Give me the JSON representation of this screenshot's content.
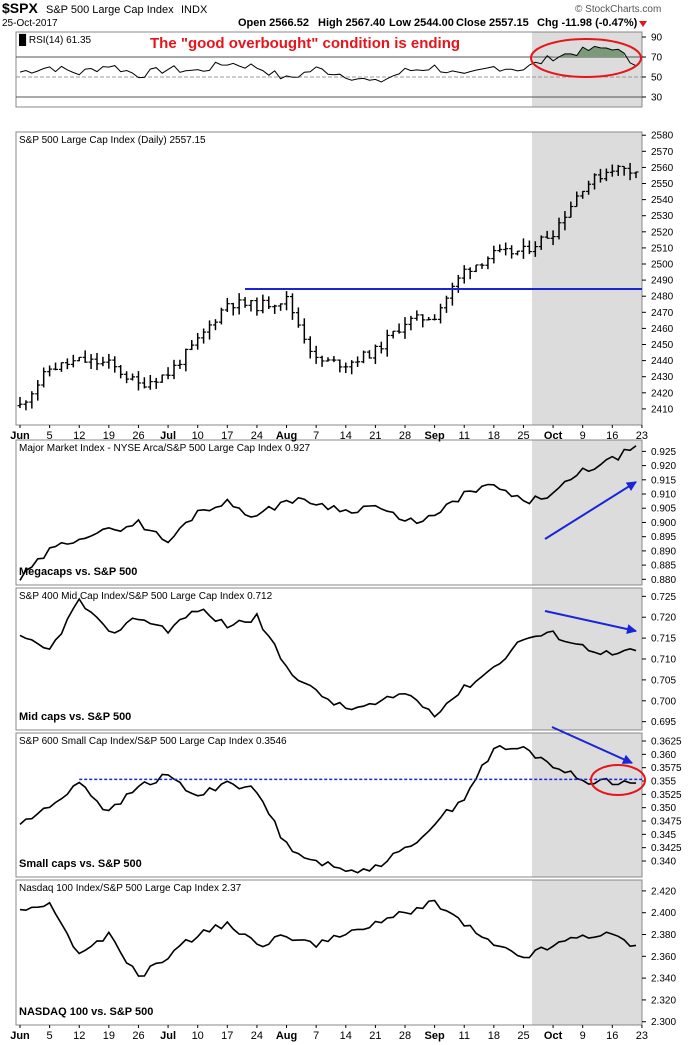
{
  "header": {
    "symbol": "$SPX",
    "name": "S&P 500 Large Cap Index",
    "exchange": "INDX",
    "date": "25-Oct-2017",
    "open": "Open 2566.52",
    "high": "High 2567.40",
    "low": "Low 2544.00",
    "close": "Close 2557.15",
    "chg": "Chg -11.98 (-0.47%)",
    "watermark": "© StockCharts.com"
  },
  "colors": {
    "annotation_red": "#e8141b",
    "blue_line": "#1a24d8",
    "shade": "#dcdcdc",
    "rsi_fill": "#7a9a7a",
    "price": "#000000"
  },
  "chart_data": [
    {
      "type": "line",
      "id": "rsi",
      "title": "RSI(14) 61.35",
      "annotation": "The \"good overbought\" condition is ending",
      "ylim": [
        20,
        95
      ],
      "y_ticks": [
        90,
        70,
        50,
        30
      ],
      "reference_lines": [
        70,
        50,
        30
      ],
      "x": [
        0,
        5,
        10,
        15,
        20,
        25,
        30,
        35,
        40,
        45,
        50,
        55,
        60,
        65,
        70,
        75,
        80,
        85,
        90,
        95,
        100,
        104
      ],
      "values": [
        55,
        60,
        54,
        62,
        52,
        58,
        56,
        64,
        60,
        48,
        58,
        52,
        44,
        56,
        60,
        50,
        60,
        58,
        70,
        76,
        80,
        61.35
      ]
    },
    {
      "type": "ohlc",
      "id": "spx",
      "title": "S&P 500 Large Cap Index (Daily) 2557.15",
      "ylim": [
        2400,
        2582
      ],
      "y_ticks": [
        2580,
        2570,
        2560,
        2550,
        2540,
        2530,
        2520,
        2510,
        2500,
        2490,
        2480,
        2470,
        2460,
        2450,
        2440,
        2430,
        2420,
        2410
      ],
      "x": [
        0,
        5,
        10,
        15,
        20,
        25,
        30,
        35,
        40,
        45,
        50,
        55,
        60,
        65,
        70,
        75,
        80,
        85,
        90,
        95,
        100,
        104
      ],
      "close": [
        2412,
        2435,
        2440,
        2438,
        2425,
        2432,
        2452,
        2476,
        2474,
        2478,
        2440,
        2438,
        2446,
        2464,
        2468,
        2496,
        2506,
        2508,
        2520,
        2548,
        2560,
        2557.15
      ],
      "horizontal_line": 2484.5
    },
    {
      "type": "line",
      "id": "megacaps",
      "title": "Major Market Index - NYSE Arca/S&P 500 Large Cap Index 0.927",
      "label": "Megacaps vs. S&P 500",
      "ylim": [
        0.878,
        0.929
      ],
      "y_ticks": [
        0.925,
        0.92,
        0.915,
        0.91,
        0.905,
        0.9,
        0.895,
        0.89,
        0.885,
        0.88
      ],
      "x": [
        0,
        5,
        10,
        15,
        20,
        25,
        30,
        35,
        40,
        45,
        50,
        55,
        60,
        65,
        70,
        75,
        80,
        85,
        90,
        95,
        100,
        104
      ],
      "values": [
        0.88,
        0.89,
        0.895,
        0.897,
        0.9,
        0.893,
        0.904,
        0.907,
        0.902,
        0.908,
        0.907,
        0.904,
        0.906,
        0.9,
        0.902,
        0.91,
        0.913,
        0.907,
        0.91,
        0.918,
        0.922,
        0.927
      ]
    },
    {
      "type": "line",
      "id": "midcaps",
      "title": "S&P 400 Mid Cap Index/S&P 500 Large Cap Index 0.712",
      "label": "Mid caps vs. S&P 500",
      "ylim": [
        0.693,
        0.727
      ],
      "y_ticks": [
        0.725,
        0.72,
        0.715,
        0.71,
        0.705,
        0.7,
        0.695
      ],
      "x": [
        0,
        5,
        10,
        15,
        20,
        25,
        30,
        35,
        40,
        45,
        50,
        55,
        60,
        65,
        70,
        75,
        80,
        85,
        90,
        95,
        100,
        104
      ],
      "values": [
        0.715,
        0.712,
        0.724,
        0.716,
        0.72,
        0.717,
        0.722,
        0.718,
        0.72,
        0.708,
        0.702,
        0.698,
        0.699,
        0.702,
        0.697,
        0.703,
        0.708,
        0.715,
        0.716,
        0.713,
        0.711,
        0.712
      ]
    },
    {
      "type": "line",
      "id": "smallcaps",
      "title": "S&P 600 Small Cap Index/S&P 500 Large Cap Index 0.3546",
      "label": "Small caps vs. S&P 500",
      "ylim": [
        0.337,
        0.364
      ],
      "y_ticks": [
        0.3625,
        0.36,
        0.3575,
        0.355,
        0.3525,
        0.35,
        0.3475,
        0.345,
        0.3425,
        0.34
      ],
      "x": [
        0,
        5,
        10,
        15,
        20,
        25,
        30,
        35,
        40,
        45,
        50,
        55,
        60,
        65,
        70,
        75,
        80,
        85,
        90,
        95,
        100,
        104
      ],
      "values": [
        0.347,
        0.35,
        0.355,
        0.349,
        0.354,
        0.356,
        0.352,
        0.355,
        0.353,
        0.343,
        0.34,
        0.338,
        0.339,
        0.342,
        0.347,
        0.352,
        0.361,
        0.361,
        0.358,
        0.355,
        0.355,
        0.3546
      ],
      "horizontal_line": 0.3553
    },
    {
      "type": "line",
      "id": "nasdaq",
      "title": "Nasdaq 100 Index/S&P 500 Large Cap Index 2.37",
      "label": "NASDAQ 100 vs. S&P 500",
      "ylim": [
        2.297,
        2.43
      ],
      "y_ticks": [
        2.42,
        2.4,
        2.38,
        2.36,
        2.34,
        2.32,
        2.3
      ],
      "x": [
        0,
        5,
        10,
        15,
        20,
        25,
        30,
        35,
        40,
        45,
        50,
        55,
        60,
        65,
        70,
        75,
        80,
        85,
        90,
        95,
        100,
        104
      ],
      "values": [
        2.4,
        2.41,
        2.36,
        2.38,
        2.34,
        2.36,
        2.38,
        2.39,
        2.37,
        2.38,
        2.37,
        2.38,
        2.39,
        2.4,
        2.41,
        2.39,
        2.37,
        2.36,
        2.37,
        2.38,
        2.38,
        2.37
      ]
    }
  ],
  "x_axis": {
    "labels": [
      "Jun",
      "5",
      "12",
      "19",
      "26",
      "Jul",
      "10",
      "17",
      "24",
      "Aug",
      "7",
      "14",
      "21",
      "28",
      "Sep",
      "11",
      "18",
      "25",
      "Oct",
      "9",
      "16",
      "23"
    ],
    "bold": [
      "Jun",
      "Jul",
      "Aug",
      "Sep",
      "Oct"
    ],
    "shaded_from": "Oct"
  }
}
